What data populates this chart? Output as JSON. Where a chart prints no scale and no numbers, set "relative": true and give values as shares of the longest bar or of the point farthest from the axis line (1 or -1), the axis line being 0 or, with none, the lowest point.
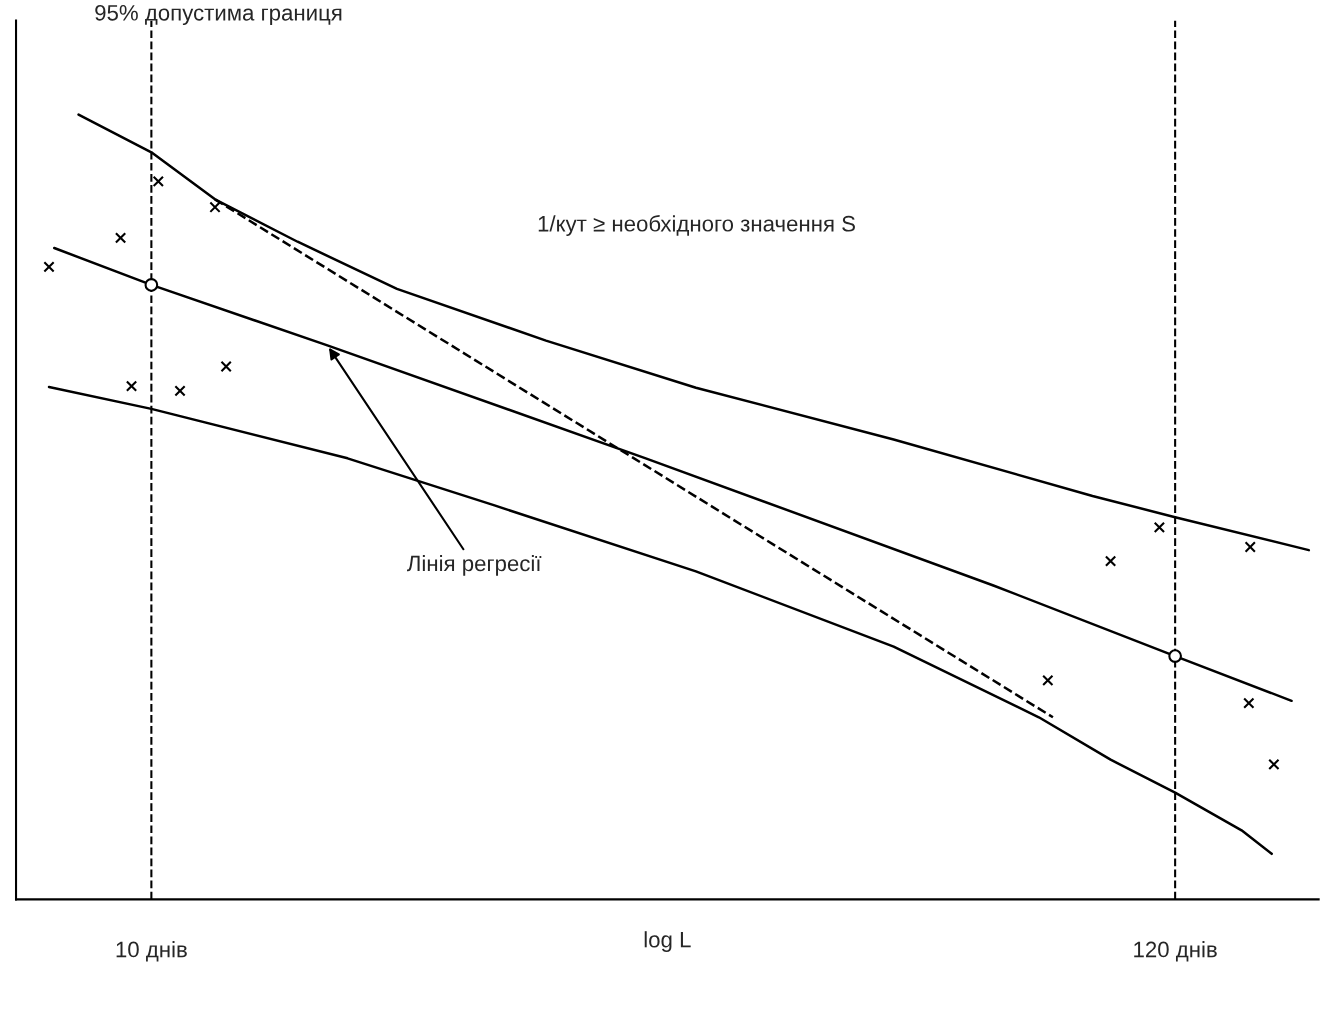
{
  "chart_data": {
    "type": "line",
    "relative": true,
    "log": "x",
    "xlabel": "log L",
    "xlim": [
      7.2,
      170
    ],
    "xticks": [
      {
        "value": 10,
        "label": "10 днів"
      },
      {
        "value": 120,
        "label": "120 днів"
      }
    ],
    "series": [
      {
        "color": "#000000",
        "line_style": "solid",
        "marker": "none",
        "x": [
          8.38,
          10,
          11.67,
          14.26,
          18.15,
          26.06,
          37.5,
          60.6,
          98.2,
          120,
          166
        ],
        "values": [
          1.0,
          0.952,
          0.892,
          0.838,
          0.778,
          0.712,
          0.652,
          0.586,
          0.514,
          0.487,
          0.445
        ]
      },
      {
        "color": "#000000",
        "line_style": "solid",
        "marker": "none",
        "x": [
          7.9,
          10,
          15.33,
          33.2,
          77.2,
          120,
          159.2
        ],
        "values": [
          0.83,
          0.783,
          0.706,
          0.562,
          0.4,
          0.31,
          0.253
        ]
      },
      {
        "color": "#000000",
        "line_style": "solid",
        "marker": "none",
        "x": [
          7.8,
          10,
          16.1,
          23.0,
          37.5,
          60.6,
          86.2,
          102.6,
          120,
          141,
          151.7
        ],
        "values": [
          0.653,
          0.625,
          0.562,
          0.502,
          0.418,
          0.322,
          0.232,
          0.178,
          0.136,
          0.088,
          0.058
        ]
      },
      {
        "color": "#000000",
        "line_style": "dashed",
        "marker": "none",
        "x": [
          11.67,
          89.2
        ],
        "values": [
          0.892,
          0.232
        ]
      },
      {
        "type": "scatter",
        "color": "#000000",
        "marker": "cross",
        "x": [
          7.8,
          9.28,
          10.17,
          11.67,
          9.53,
          10.72,
          11.99,
          88.1,
          102.6,
          115.5,
          144,
          143.5,
          152.5
        ],
        "values": [
          0.806,
          0.843,
          0.915,
          0.882,
          0.654,
          0.648,
          0.679,
          0.279,
          0.431,
          0.474,
          0.449,
          0.25,
          0.172
        ]
      },
      {
        "type": "scatter",
        "color": "#000000",
        "marker": "circle",
        "x": [
          10,
          120
        ],
        "values": [
          0.783,
          0.31
        ]
      }
    ],
    "ref_lines": [
      {
        "axis": "x",
        "value": 10,
        "color": "#000000",
        "line_style": "dashed"
      },
      {
        "axis": "x",
        "value": 120,
        "color": "#000000",
        "line_style": "dashed"
      }
    ],
    "annotations": [
      "95% допустима границя",
      "1/кут ≥ необхідного значення S",
      {
        "text": "Лінія регресії",
        "x": 15.33,
        "y": 0.706
      }
    ]
  }
}
